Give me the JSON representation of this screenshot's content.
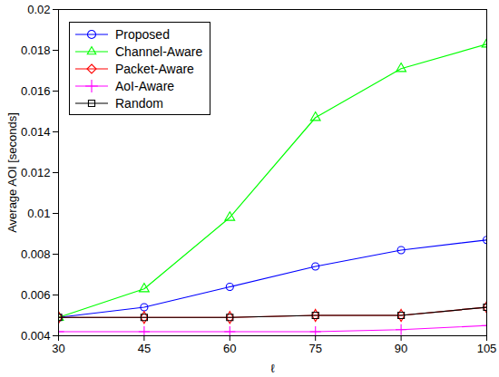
{
  "chart_data": {
    "type": "line",
    "x_label": "ℓ",
    "y_label": "Average AOI [seconds]",
    "x": [
      30,
      45,
      60,
      75,
      90,
      105
    ],
    "xlim": [
      30,
      105
    ],
    "xticks": [
      30,
      45,
      60,
      75,
      90,
      105
    ],
    "ylim": [
      0.004,
      0.02
    ],
    "yticks": [
      0.004,
      0.006,
      0.008,
      0.01,
      0.012,
      0.014,
      0.016,
      0.018,
      0.02
    ],
    "grid": false,
    "legend": "top-left",
    "series": [
      {
        "name": "Proposed",
        "color": "#0000ff",
        "marker": "circle",
        "values": [
          0.0049,
          0.0054,
          0.0064,
          0.0074,
          0.0082,
          0.0087
        ]
      },
      {
        "name": "Channel-Aware",
        "color": "#00ff00",
        "marker": "triangle",
        "values": [
          0.0049,
          0.0063,
          0.0098,
          0.0147,
          0.0171,
          0.0183
        ]
      },
      {
        "name": "Packet-Aware",
        "color": "#ff0000",
        "marker": "diamond",
        "values": [
          0.0049,
          0.0049,
          0.0049,
          0.005,
          0.005,
          0.0054
        ]
      },
      {
        "name": "AoI-Aware",
        "color": "#ff00ff",
        "marker": "plus",
        "values": [
          0.0042,
          0.0042,
          0.0042,
          0.0042,
          0.0043,
          0.0045
        ]
      },
      {
        "name": "Random",
        "color": "#000000",
        "marker": "square",
        "values": [
          0.0049,
          0.0049,
          0.0049,
          0.005,
          0.005,
          0.0054
        ]
      }
    ]
  }
}
